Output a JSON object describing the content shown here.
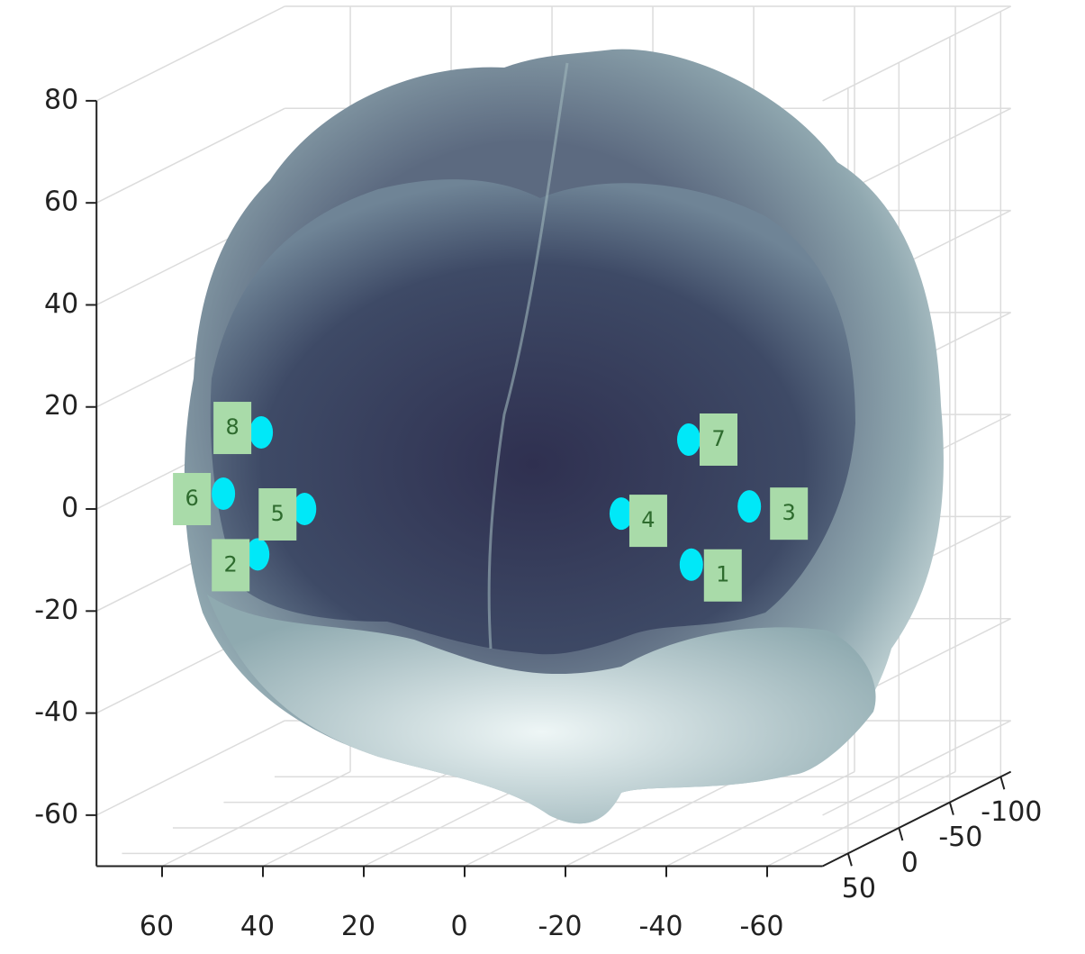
{
  "chart_data": {
    "type": "scatter3d",
    "labels": [
      "1",
      "2",
      "3",
      "4",
      "5",
      "6",
      "7",
      "8"
    ],
    "x": [
      -37.9,
      48.1,
      -49.4,
      -24.0,
      38.8,
      54.9,
      -37.4,
      47.4
    ],
    "y": [
      40,
      40,
      40,
      40,
      40,
      40,
      40,
      40
    ],
    "z": [
      -14.4,
      -12.4,
      -3.0,
      -4.4,
      -3.5,
      -0.5,
      10.1,
      11.5
    ],
    "color": "#00e8f8",
    "label_color": "#a9dba9",
    "xlim": [
      73,
      -71
    ],
    "ylim": [
      75,
      -110
    ],
    "zlim": [
      -70,
      80
    ],
    "xticks": [
      60,
      40,
      20,
      0,
      -20,
      -40,
      -60
    ],
    "yticks": [
      50,
      0,
      -50,
      -100
    ],
    "zticks": [
      -60,
      -40,
      -20,
      0,
      20,
      40,
      60,
      80
    ],
    "grid": true
  }
}
